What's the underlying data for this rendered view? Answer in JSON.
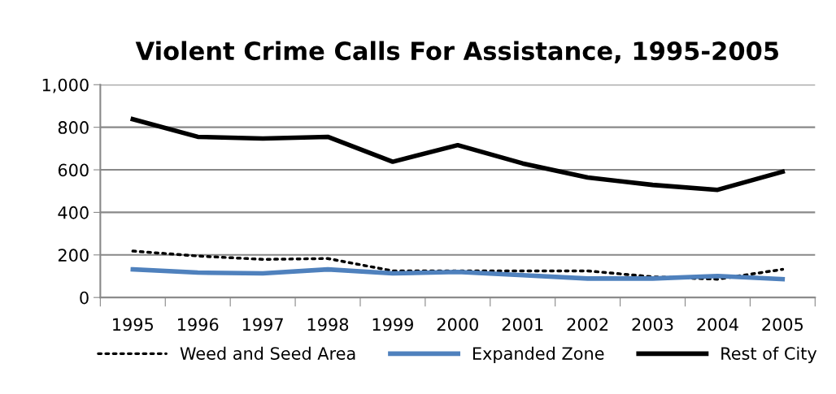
{
  "chart_data": {
    "type": "line",
    "title": "Violent Crime Calls For Assistance, 1995-2005",
    "categories": [
      "1995",
      "1996",
      "1997",
      "1998",
      "1999",
      "2000",
      "2001",
      "2002",
      "2003",
      "2004",
      "2005"
    ],
    "series": [
      {
        "name": "Weed and Seed Area",
        "color": "#000000",
        "line_style": "dotted",
        "values": [
          218,
          195,
          179,
          183,
          125,
          125,
          125,
          125,
          97,
          86,
          132
        ]
      },
      {
        "name": "Expanded Zone",
        "color": "#4f81bd",
        "line_style": "solid",
        "values": [
          132,
          117,
          113,
          132,
          113,
          120,
          105,
          89,
          89,
          101,
          86
        ]
      },
      {
        "name": "Rest of City",
        "color": "#000000",
        "line_style": "solid",
        "values": [
          838,
          755,
          747,
          755,
          638,
          716,
          630,
          564,
          529,
          506,
          591
        ]
      }
    ],
    "ylim": [
      0,
      1000
    ],
    "yticks": [
      0,
      200,
      400,
      600,
      {
        "value": 800,
        "label": "800"
      },
      {
        "value": 1000,
        "label": "1,000"
      }
    ],
    "grid": "y",
    "legend": "bottom",
    "marker": "none"
  }
}
